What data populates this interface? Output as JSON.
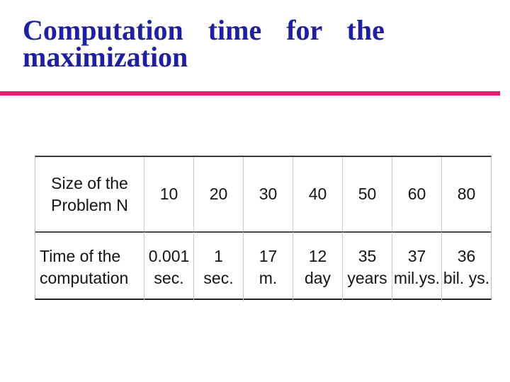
{
  "title": {
    "lines": [
      "Computation time for the",
      "maximization"
    ]
  },
  "table": {
    "size_row": {
      "label": "Size of the Problem N",
      "values": [
        "10",
        "20",
        "30",
        "40",
        "50",
        "60",
        "80"
      ]
    },
    "time_row": {
      "label": "Time of the computation",
      "values": [
        {
          "amount": "0.001",
          "unit": "sec."
        },
        {
          "amount": "1",
          "unit": "sec."
        },
        {
          "amount": "17",
          "unit": "m."
        },
        {
          "amount": "12",
          "unit": "day"
        },
        {
          "amount": "35",
          "unit": "years"
        },
        {
          "amount": "37",
          "unit": "mil.ys."
        },
        {
          "amount": "36",
          "unit": "bil. ys."
        }
      ]
    }
  },
  "chart_data": {
    "type": "table",
    "columns": [
      "Size of the Problem N",
      "10",
      "20",
      "30",
      "40",
      "50",
      "60",
      "80"
    ],
    "rows": [
      [
        "Time of the computation",
        "0.001 sec.",
        "1 sec.",
        "17 m.",
        "12 day",
        "35 years",
        "37 mil.ys.",
        "36 bil. ys."
      ]
    ]
  },
  "colors": {
    "title_blue": "#1F1FA0",
    "accent_pink": "#E9176D",
    "divider_shadow": "#F2F0FA",
    "table_text": "#141414"
  }
}
